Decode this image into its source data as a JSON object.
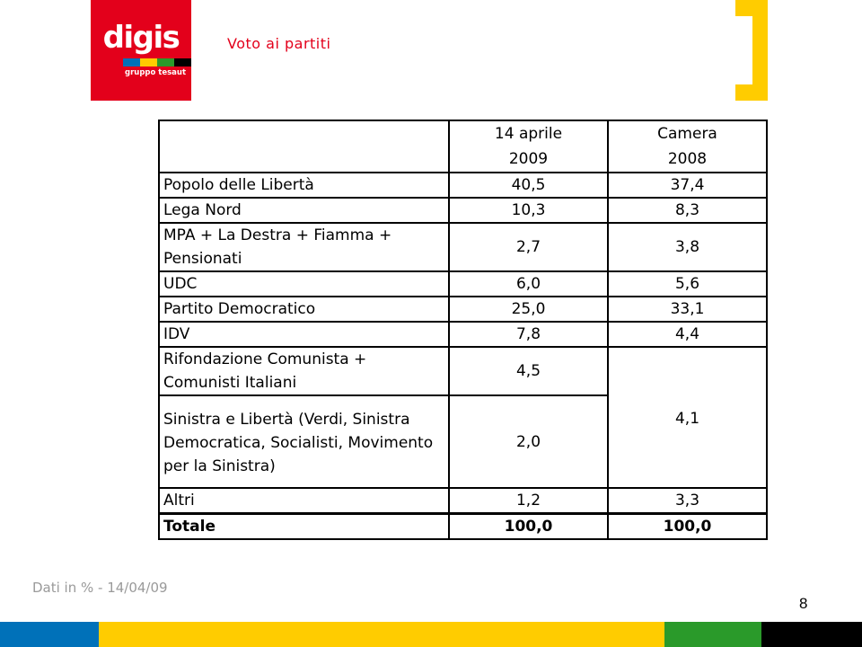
{
  "brand": {
    "name": "digis",
    "tagline": "gruppo tesaut",
    "red": "#e3001b",
    "yellow": "#ffcc00",
    "blue": "#0071b9",
    "green": "#2a9a2a",
    "black": "#000000"
  },
  "slide": {
    "title": "Voto ai partiti",
    "footnote": "Dati in % - 14/04/09",
    "page_number": "8"
  },
  "table": {
    "header": {
      "col1_line1": "14 aprile",
      "col1_line2": "2009",
      "col2_line1": "Camera",
      "col2_line2": "2008"
    },
    "rows": [
      {
        "party": "Popolo delle Libertà",
        "v2009": "40,5",
        "v2008": "37,4"
      },
      {
        "party": "Lega Nord",
        "v2009": "10,3",
        "v2008": "8,3"
      },
      {
        "party": "MPA + La Destra + Fiamma + Pensionati",
        "v2009": "2,7",
        "v2008": "3,8"
      },
      {
        "party": "UDC",
        "v2009": "6,0",
        "v2008": "5,6"
      },
      {
        "party": "Partito Democratico",
        "v2009": "25,0",
        "v2008": "33,1"
      },
      {
        "party": "IDV",
        "v2009": "7,8",
        "v2008": "4,4"
      },
      {
        "party": "Rifondazione Comunista + Comunisti Italiani",
        "v2009": "4,5",
        "v2008": "4,1"
      },
      {
        "party": "Sinistra e Libertà (Verdi, Sinistra Democratica, Socialisti, Movimento per la Sinistra)",
        "v2009": "2,0"
      },
      {
        "party": "Altri",
        "v2009": "1,2",
        "v2008": "3,3"
      },
      {
        "party": "Totale",
        "v2009": "100,0",
        "v2008": "100,0"
      }
    ]
  }
}
